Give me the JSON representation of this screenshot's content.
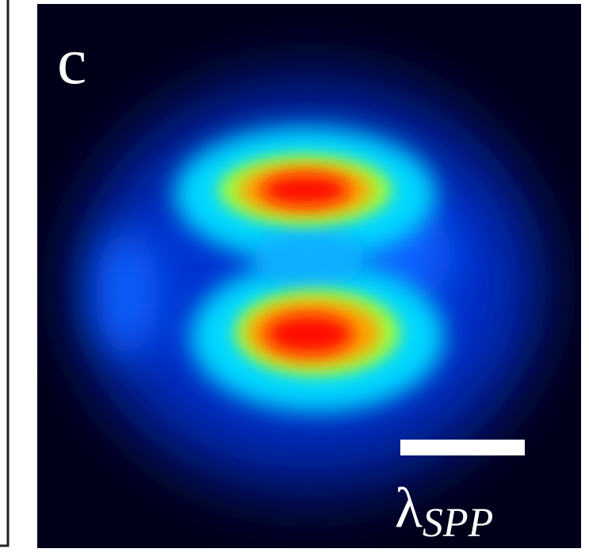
{
  "panel": {
    "label": "c",
    "scale_bar": {
      "symbol": "λ",
      "subscript": "SPP"
    }
  }
}
